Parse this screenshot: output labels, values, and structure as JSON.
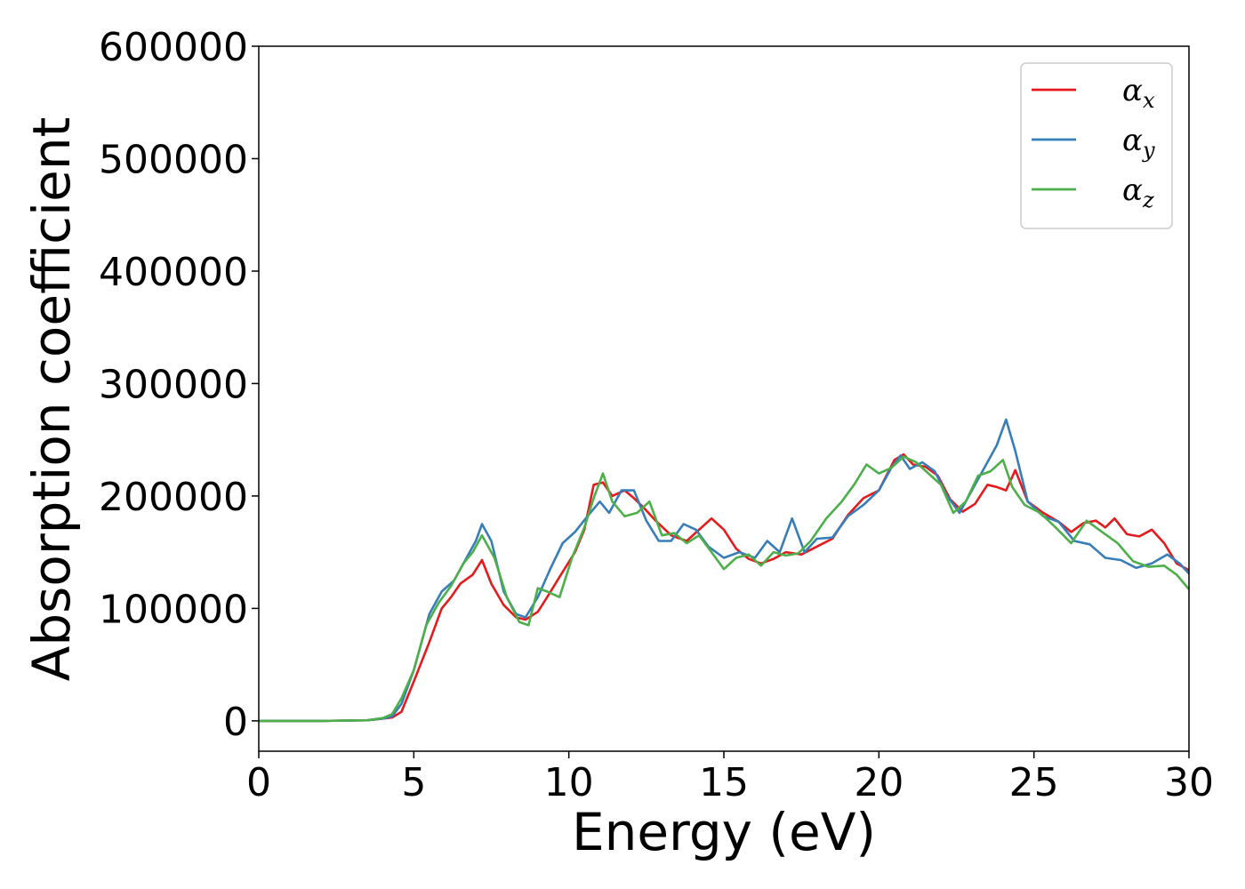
{
  "chart_data": {
    "type": "line",
    "xlabel": "Energy (eV)",
    "ylabel": "Absorption coefficient",
    "xlim": [
      0,
      30
    ],
    "ylim": [
      -27000,
      600000
    ],
    "xticks": [
      0,
      5,
      10,
      15,
      20,
      25,
      30
    ],
    "yticks": [
      0,
      100000,
      200000,
      300000,
      400000,
      500000,
      600000
    ],
    "grid": false,
    "legend_position": "top-right",
    "series": [
      {
        "name": "α_x",
        "symbol": "α",
        "subscript": "x",
        "color": "#e41a1c",
        "x": [
          0,
          2,
          3.5,
          4,
          4.3,
          4.6,
          5,
          5.5,
          5.9,
          6.2,
          6.5,
          6.9,
          7.2,
          7.5,
          7.9,
          8.3,
          8.6,
          9,
          9.3,
          9.7,
          10.2,
          10.5,
          10.8,
          11.1,
          11.4,
          11.8,
          12.1,
          12.4,
          12.8,
          13.3,
          13.8,
          14.2,
          14.6,
          15,
          15.4,
          15.8,
          16.2,
          16.6,
          17,
          17.5,
          18,
          18.5,
          19,
          19.5,
          20,
          20.5,
          20.8,
          21.1,
          21.5,
          21.9,
          22.3,
          22.7,
          23.1,
          23.5,
          23.8,
          24.1,
          24.4,
          24.8,
          25.3,
          25.8,
          26.2,
          26.6,
          27,
          27.3,
          27.6,
          28,
          28.4,
          28.8,
          29.2,
          29.6,
          30
        ],
        "y": [
          0,
          0,
          500,
          2000,
          3000,
          8000,
          35000,
          70000,
          100000,
          110000,
          122000,
          130000,
          143000,
          122000,
          103000,
          92000,
          90000,
          97000,
          110000,
          128000,
          150000,
          170000,
          210000,
          212000,
          200000,
          205000,
          198000,
          190000,
          178000,
          165000,
          160000,
          170000,
          180000,
          170000,
          153000,
          144000,
          140000,
          144000,
          150000,
          148000,
          155000,
          162000,
          183000,
          198000,
          205000,
          232000,
          237000,
          228000,
          226000,
          218000,
          197000,
          186000,
          193000,
          210000,
          208000,
          205000,
          223000,
          195000,
          185000,
          177000,
          168000,
          176000,
          178000,
          172000,
          180000,
          166000,
          164000,
          170000,
          158000,
          140000,
          134000
        ]
      },
      {
        "name": "α_y",
        "symbol": "α",
        "subscript": "y",
        "color": "#377eb8",
        "x": [
          0,
          2,
          3.5,
          4,
          4.3,
          4.6,
          5,
          5.5,
          5.9,
          6.3,
          6.7,
          7,
          7.2,
          7.5,
          7.9,
          8.3,
          8.6,
          9,
          9.4,
          9.8,
          10.2,
          10.6,
          11,
          11.3,
          11.7,
          12.1,
          12.5,
          12.9,
          13.3,
          13.7,
          14.1,
          14.5,
          15,
          15.5,
          16,
          16.4,
          16.8,
          17.2,
          17.6,
          18,
          18.5,
          19,
          19.5,
          20,
          20.4,
          20.7,
          21,
          21.4,
          21.8,
          22.2,
          22.6,
          23,
          23.4,
          23.8,
          24.1,
          24.4,
          24.8,
          25.3,
          25.8,
          26.3,
          26.8,
          27.3,
          27.8,
          28.3,
          28.8,
          29.3,
          29.7,
          30
        ],
        "y": [
          0,
          0,
          500,
          2000,
          4000,
          15000,
          45000,
          95000,
          115000,
          125000,
          145000,
          160000,
          175000,
          160000,
          115000,
          95000,
          92000,
          110000,
          135000,
          158000,
          168000,
          182000,
          195000,
          185000,
          205000,
          205000,
          178000,
          160000,
          160000,
          175000,
          170000,
          155000,
          145000,
          150000,
          145000,
          160000,
          150000,
          180000,
          150000,
          162000,
          163000,
          182000,
          192000,
          205000,
          225000,
          236000,
          224000,
          230000,
          222000,
          200000,
          185000,
          205000,
          225000,
          245000,
          268000,
          240000,
          195000,
          182000,
          177000,
          160000,
          157000,
          145000,
          143000,
          136000,
          140000,
          148000,
          140000,
          131000
        ]
      },
      {
        "name": "α_z",
        "symbol": "α",
        "subscript": "z",
        "color": "#4daf4a",
        "x": [
          0,
          2,
          3.5,
          4,
          4.3,
          4.6,
          5,
          5.4,
          5.8,
          6.2,
          6.6,
          6.9,
          7.2,
          7.6,
          8,
          8.4,
          8.7,
          9,
          9.3,
          9.7,
          10.1,
          10.5,
          10.8,
          11.1,
          11.4,
          11.8,
          12.2,
          12.6,
          13,
          13.4,
          13.8,
          14.2,
          14.6,
          15,
          15.4,
          15.8,
          16.2,
          16.6,
          17,
          17.4,
          17.8,
          18.3,
          18.8,
          19.2,
          19.6,
          20,
          20.4,
          20.8,
          21.2,
          21.6,
          22,
          22.4,
          22.8,
          23.2,
          23.6,
          24,
          24.3,
          24.7,
          25.2,
          25.7,
          26.2,
          26.7,
          27.2,
          27.7,
          28.2,
          28.7,
          29.2,
          29.6,
          30
        ],
        "y": [
          0,
          0,
          500,
          2500,
          6000,
          20000,
          45000,
          85000,
          105000,
          120000,
          140000,
          150000,
          165000,
          145000,
          110000,
          88000,
          85000,
          118000,
          115000,
          110000,
          145000,
          172000,
          198000,
          220000,
          195000,
          182000,
          185000,
          195000,
          165000,
          167000,
          158000,
          165000,
          150000,
          135000,
          145000,
          148000,
          138000,
          150000,
          147000,
          149000,
          160000,
          180000,
          195000,
          210000,
          228000,
          220000,
          225000,
          235000,
          230000,
          220000,
          210000,
          185000,
          195000,
          218000,
          222000,
          232000,
          208000,
          192000,
          185000,
          172000,
          158000,
          178000,
          168000,
          158000,
          142000,
          137000,
          138000,
          130000,
          117000
        ]
      }
    ]
  }
}
